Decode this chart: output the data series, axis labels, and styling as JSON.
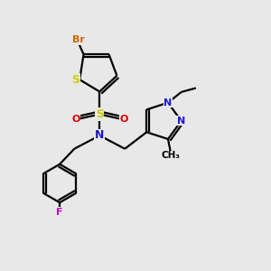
{
  "bg_color": "#e8e8e8",
  "atom_colors": {
    "C": "#000000",
    "N": "#1a1acc",
    "O": "#dd0000",
    "S": "#cccc00",
    "Br": "#cc6600",
    "F": "#cc00cc"
  },
  "bond_color": "#000000",
  "lw": 1.6
}
